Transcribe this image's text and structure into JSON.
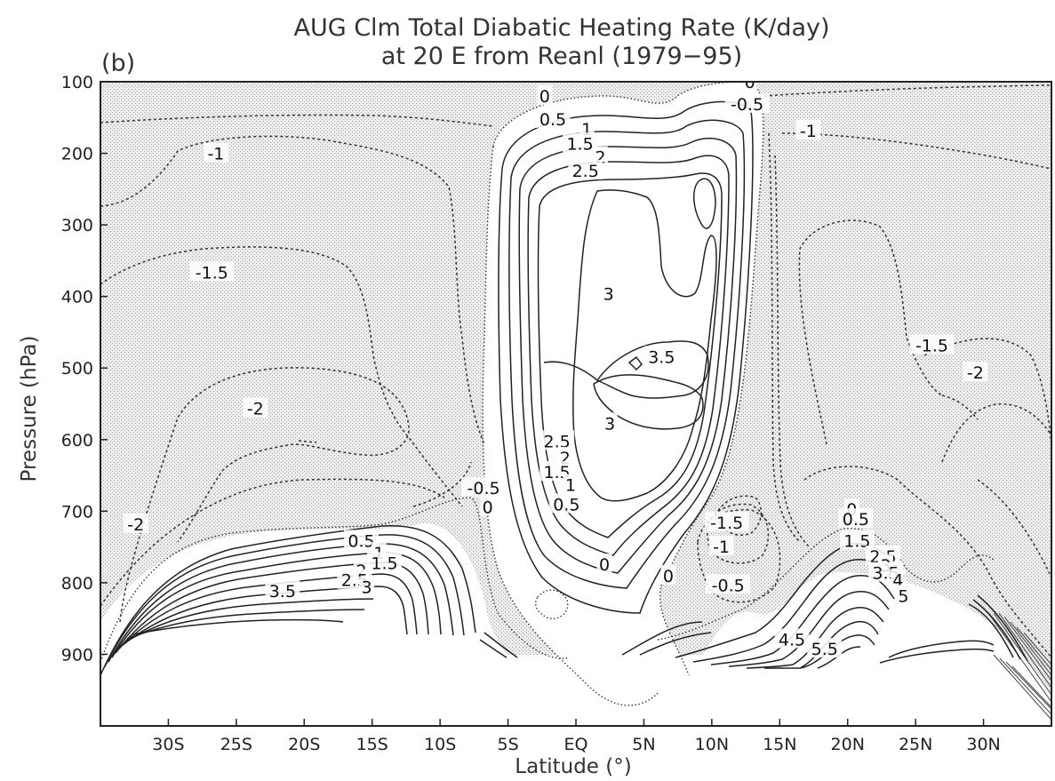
{
  "chart_data": {
    "type": "contour",
    "panel_label": "(b)",
    "title_line1": "AUG Clm Total Diabatic Heating Rate (K/day)",
    "title_line2": "at 20 E from Reanl (1979−95)",
    "xlabel": "Latitude (°)",
    "ylabel": "Pressure (hPa)",
    "xlim": [
      -35,
      35
    ],
    "ylim": [
      1000,
      100
    ],
    "x_ticks": [
      {
        "value": -30,
        "label": "30S"
      },
      {
        "value": -25,
        "label": "25S"
      },
      {
        "value": -20,
        "label": "20S"
      },
      {
        "value": -15,
        "label": "15S"
      },
      {
        "value": -10,
        "label": "10S"
      },
      {
        "value": -5,
        "label": "5S"
      },
      {
        "value": 0,
        "label": "EQ"
      },
      {
        "value": 5,
        "label": "5N"
      },
      {
        "value": 10,
        "label": "10N"
      },
      {
        "value": 15,
        "label": "15N"
      },
      {
        "value": 20,
        "label": "20N"
      },
      {
        "value": 25,
        "label": "25N"
      },
      {
        "value": 30,
        "label": "30N"
      }
    ],
    "y_ticks": [
      100,
      200,
      300,
      400,
      500,
      600,
      700,
      800,
      900
    ],
    "shading": "negative values shaded",
    "contour_labels": [
      {
        "text": "0",
        "lat": -2.3,
        "p": 120
      },
      {
        "text": "0.5",
        "lat": -1.7,
        "p": 152
      },
      {
        "text": "1",
        "lat": 0.8,
        "p": 166
      },
      {
        "text": "1.5",
        "lat": 0.3,
        "p": 186
      },
      {
        "text": "2",
        "lat": 1.8,
        "p": 205
      },
      {
        "text": "2.5",
        "lat": 0.7,
        "p": 224
      },
      {
        "text": "3",
        "lat": 2.4,
        "p": 396
      },
      {
        "text": "3.5",
        "lat": 6.3,
        "p": 484
      },
      {
        "text": "3",
        "lat": 2.5,
        "p": 577
      },
      {
        "text": "2.5",
        "lat": -1.4,
        "p": 602
      },
      {
        "text": "2",
        "lat": -0.8,
        "p": 625
      },
      {
        "text": "1.5",
        "lat": -1.4,
        "p": 645
      },
      {
        "text": "1",
        "lat": -0.4,
        "p": 663
      },
      {
        "text": "0.5",
        "lat": -0.7,
        "p": 690
      },
      {
        "text": "0",
        "lat": 2.1,
        "p": 774
      },
      {
        "text": "0",
        "lat": 12.8,
        "p": 100
      },
      {
        "text": "-0.5",
        "lat": 12.6,
        "p": 131
      },
      {
        "text": "-1",
        "lat": 17.1,
        "p": 168
      },
      {
        "text": "-1",
        "lat": -26.5,
        "p": 200
      },
      {
        "text": "-1.5",
        "lat": -26.8,
        "p": 366
      },
      {
        "text": "-2",
        "lat": -23.6,
        "p": 556
      },
      {
        "text": "-2",
        "lat": -32.4,
        "p": 718
      },
      {
        "text": "-0.5",
        "lat": -6.8,
        "p": 667
      },
      {
        "text": "0",
        "lat": -6.5,
        "p": 694
      },
      {
        "text": "0.5",
        "lat": -15.8,
        "p": 741
      },
      {
        "text": "1",
        "lat": -14.5,
        "p": 758
      },
      {
        "text": "1.5",
        "lat": -14.1,
        "p": 772
      },
      {
        "text": "2",
        "lat": -15.8,
        "p": 783
      },
      {
        "text": "2.5",
        "lat": -16.3,
        "p": 796
      },
      {
        "text": "3",
        "lat": -15.4,
        "p": 806
      },
      {
        "text": "3.5",
        "lat": -21.6,
        "p": 811
      },
      {
        "text": "-1.5",
        "lat": 11.1,
        "p": 716
      },
      {
        "text": "-1",
        "lat": 10.7,
        "p": 749
      },
      {
        "text": "-0.5",
        "lat": 11.2,
        "p": 803
      },
      {
        "text": "0",
        "lat": 6.8,
        "p": 790
      },
      {
        "text": "0",
        "lat": 20.3,
        "p": 697
      },
      {
        "text": "0.5",
        "lat": 20.6,
        "p": 711
      },
      {
        "text": "1.5",
        "lat": 20.7,
        "p": 741
      },
      {
        "text": "2.5",
        "lat": 22.6,
        "p": 763
      },
      {
        "text": "3",
        "lat": 22.8,
        "p": 775
      },
      {
        "text": "3.5",
        "lat": 22.8,
        "p": 786
      },
      {
        "text": "4",
        "lat": 23.7,
        "p": 796
      },
      {
        "text": "5",
        "lat": 24.1,
        "p": 818
      },
      {
        "text": "4.5",
        "lat": 15.9,
        "p": 879
      },
      {
        "text": "5.5",
        "lat": 18.3,
        "p": 892
      },
      {
        "text": "-1.5",
        "lat": 26.2,
        "p": 468
      },
      {
        "text": "-2",
        "lat": 29.4,
        "p": 506
      }
    ]
  }
}
